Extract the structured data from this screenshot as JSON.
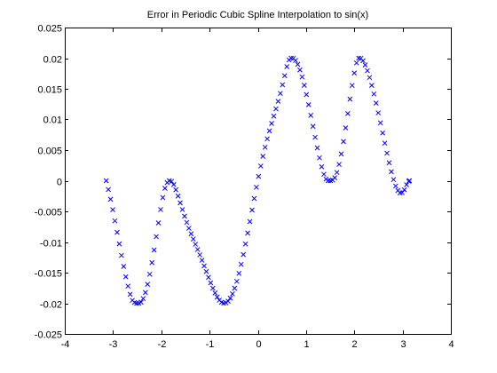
{
  "chart_data": {
    "type": "scatter",
    "title": "Error in Periodic Cubic Spline Interpolation to sin(x)",
    "xlabel": "",
    "ylabel": "",
    "xlim": [
      -4,
      4
    ],
    "ylim": [
      -0.025,
      0.025
    ],
    "x_ticks": [
      -4,
      -3,
      -2,
      -1,
      0,
      1,
      2,
      3,
      4
    ],
    "x_tick_labels": [
      "-4",
      "-3",
      "-2",
      "-1",
      "0",
      "1",
      "2",
      "3",
      "4"
    ],
    "y_ticks": [
      -0.025,
      -0.02,
      -0.015,
      -0.01,
      -0.005,
      0,
      0.005,
      0.01,
      0.015,
      0.02,
      0.025
    ],
    "y_tick_labels": [
      "-0.025",
      "-0.02",
      "-0.015",
      "-0.01",
      "-0.005",
      "0",
      "0.005",
      "0.01",
      "0.015",
      "0.02",
      "0.025"
    ],
    "marker": "x",
    "marker_color": "#0000ff",
    "grid": false,
    "legend": "none",
    "series": [
      {
        "values": [
          [
            -3.1416,
            0.0
          ],
          [
            -3.0965,
            -0.00143
          ],
          [
            -3.0514,
            -0.00302
          ],
          [
            -3.0063,
            -0.00473
          ],
          [
            -2.9612,
            -0.00655
          ],
          [
            -2.9161,
            -0.00842
          ],
          [
            -2.871,
            -0.01031
          ],
          [
            -2.8259,
            -0.01218
          ],
          [
            -2.7808,
            -0.01398
          ],
          [
            -2.7357,
            -0.01567
          ],
          [
            -2.6906,
            -0.0172
          ],
          [
            -2.6455,
            -0.01853
          ],
          [
            -2.6004,
            -0.01952
          ],
          [
            -2.5553,
            -0.01988
          ],
          [
            -2.5102,
            -0.02
          ],
          [
            -2.4651,
            -0.02
          ],
          [
            -2.42,
            -0.01982
          ],
          [
            -2.3749,
            -0.01923
          ],
          [
            -2.3298,
            -0.01824
          ],
          [
            -2.2847,
            -0.0169
          ],
          [
            -2.2396,
            -0.01526
          ],
          [
            -2.1945,
            -0.01337
          ],
          [
            -2.1494,
            -0.0113
          ],
          [
            -2.1043,
            -0.00912
          ],
          [
            -2.0592,
            -0.00689
          ],
          [
            -2.0141,
            -0.0047
          ],
          [
            -1.969,
            -0.00275
          ],
          [
            -1.9239,
            -0.00123
          ],
          [
            -1.8788,
            -0.00031
          ],
          [
            -1.8337,
            0.0
          ],
          [
            -1.7886,
            -0.0001
          ],
          [
            -1.7435,
            -0.00064
          ],
          [
            -1.6984,
            -0.00148
          ],
          [
            -1.6533,
            -0.0025
          ],
          [
            -1.6082,
            -0.0036
          ],
          [
            -1.5631,
            -0.0047
          ],
          [
            -1.518,
            -0.00578
          ],
          [
            -1.4729,
            -0.0068
          ],
          [
            -1.4278,
            -0.00776
          ],
          [
            -1.3827,
            -0.00866
          ],
          [
            -1.3376,
            -0.00952
          ],
          [
            -1.2925,
            -0.01037
          ],
          [
            -1.2474,
            -0.01122
          ],
          [
            -1.2023,
            -0.01209
          ],
          [
            -1.1572,
            -0.01298
          ],
          [
            -1.1121,
            -0.01389
          ],
          [
            -1.067,
            -0.01482
          ],
          [
            -1.0219,
            -0.01576
          ],
          [
            -0.9768,
            -0.01667
          ],
          [
            -0.9317,
            -0.01754
          ],
          [
            -0.8866,
            -0.01832
          ],
          [
            -0.8415,
            -0.01899
          ],
          [
            -0.7964,
            -0.0195
          ],
          [
            -0.7513,
            -0.01984
          ],
          [
            -0.7062,
            -0.01999
          ],
          [
            -0.6611,
            -0.01993
          ],
          [
            -0.616,
            -0.01966
          ],
          [
            -0.5709,
            -0.01917
          ],
          [
            -0.5258,
            -0.01846
          ],
          [
            -0.4807,
            -0.01754
          ],
          [
            -0.4356,
            -0.01642
          ],
          [
            -0.3905,
            -0.01512
          ],
          [
            -0.3454,
            -0.01365
          ],
          [
            -0.3003,
            -0.01205
          ],
          [
            -0.2552,
            -0.01033
          ],
          [
            -0.2101,
            -0.00853
          ],
          [
            -0.165,
            -0.00667
          ],
          [
            -0.1199,
            -0.00478
          ],
          [
            -0.0748,
            -0.0029
          ],
          [
            -0.0297,
            -0.00106
          ],
          [
            0.0154,
            0.00071
          ],
          [
            0.0605,
            0.0024
          ],
          [
            0.1056,
            0.00398
          ],
          [
            0.1507,
            0.00546
          ],
          [
            0.1958,
            0.00684
          ],
          [
            0.2409,
            0.00813
          ],
          [
            0.286,
            0.00935
          ],
          [
            0.3311,
            0.01054
          ],
          [
            0.3762,
            0.01173
          ],
          [
            0.4213,
            0.01295
          ],
          [
            0.4664,
            0.01425
          ],
          [
            0.5115,
            0.01565
          ],
          [
            0.5566,
            0.01714
          ],
          [
            0.6017,
            0.01862
          ],
          [
            0.6468,
            0.01972
          ],
          [
            0.6919,
            0.02
          ],
          [
            0.737,
            0.01997
          ],
          [
            0.7821,
            0.01963
          ],
          [
            0.8272,
            0.01899
          ],
          [
            0.8723,
            0.01808
          ],
          [
            0.9174,
            0.01693
          ],
          [
            0.9625,
            0.01558
          ],
          [
            1.0076,
            0.01406
          ],
          [
            1.0527,
            0.01241
          ],
          [
            1.0978,
            0.01067
          ],
          [
            1.1429,
            0.00888
          ],
          [
            1.188,
            0.00709
          ],
          [
            1.2331,
            0.00536
          ],
          [
            1.2782,
            0.00374
          ],
          [
            1.3233,
            0.00228
          ],
          [
            1.3684,
            0.00106
          ],
          [
            1.4135,
            0.00026
          ],
          [
            1.4586,
            0.0
          ],
          [
            1.5037,
            0.0
          ],
          [
            1.5488,
            0.00011
          ],
          [
            1.5939,
            0.00049
          ],
          [
            1.639,
            0.00135
          ],
          [
            1.6841,
            0.00267
          ],
          [
            1.7292,
            0.00437
          ],
          [
            1.7743,
            0.00639
          ],
          [
            1.8194,
            0.00862
          ],
          [
            1.8645,
            0.01096
          ],
          [
            1.9096,
            0.01331
          ],
          [
            1.9547,
            0.01555
          ],
          [
            1.9998,
            0.01757
          ],
          [
            2.0449,
            0.01923
          ],
          [
            2.09,
            0.02
          ],
          [
            2.1351,
            0.01997
          ],
          [
            2.1802,
            0.01958
          ],
          [
            2.2253,
            0.01889
          ],
          [
            2.2704,
            0.01796
          ],
          [
            2.3155,
            0.01684
          ],
          [
            2.3606,
            0.01556
          ],
          [
            2.4057,
            0.01416
          ],
          [
            2.4508,
            0.01266
          ],
          [
            2.4959,
            0.01108
          ],
          [
            2.541,
            0.00945
          ],
          [
            2.5861,
            0.00779
          ],
          [
            2.6312,
            0.00613
          ],
          [
            2.6763,
            0.0045
          ],
          [
            2.7214,
            0.00293
          ],
          [
            2.7665,
            0.00147
          ],
          [
            2.8116,
            0.00019
          ],
          [
            2.8567,
            -0.00086
          ],
          [
            2.9018,
            -0.0016
          ],
          [
            2.9469,
            -0.00198
          ],
          [
            2.992,
            -0.00195
          ],
          [
            3.0371,
            -0.00148
          ],
          [
            3.0822,
            -0.00065
          ],
          [
            3.1273,
            -8e-05
          ],
          [
            3.1416,
            0.0
          ]
        ]
      }
    ]
  }
}
